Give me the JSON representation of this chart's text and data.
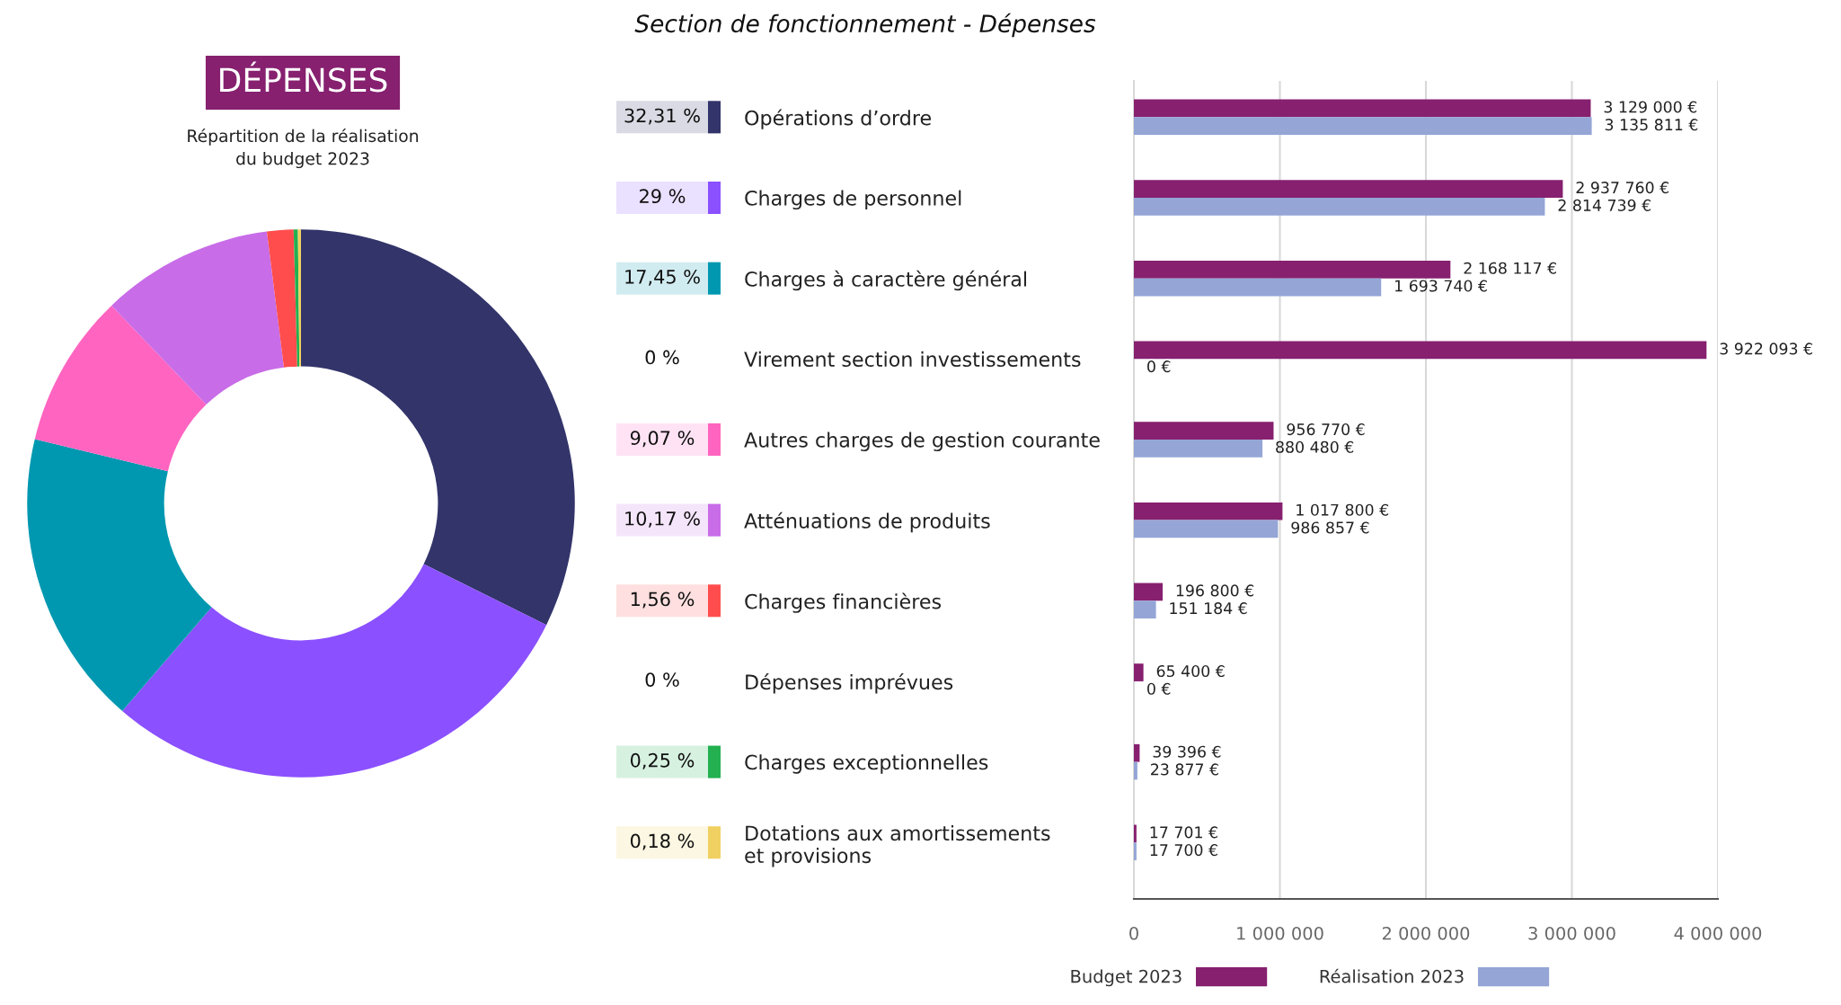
{
  "chart_data": [
    {
      "type": "donut",
      "title": "DÉPENSES",
      "subtitle": "Répartition de la réalisation\ndu budget 2023",
      "categories": [
        null,
        null,
        null,
        null,
        null,
        null,
        null,
        null,
        null,
        null
      ],
      "values": [
        32.31,
        29,
        17.45,
        0,
        9.07,
        10.17,
        1.56,
        0,
        0.25,
        0.18
      ],
      "annotations": [
        "32,31 %",
        "29 %",
        "17,45 %",
        "0 %",
        "9,07 %",
        "10,17 %",
        "1,56 %",
        "0 %",
        "0,25 %",
        "0,18 %"
      ],
      "colors": [
        "#32346a",
        "#8b50ff",
        "#0098b0",
        null,
        "#ff64c0",
        "#c86ce8",
        "#ff4d4d",
        null,
        "#22b050",
        "#f0d060"
      ]
    },
    {
      "type": "bar",
      "orientation": "horizontal",
      "title": "Section de fonctionnement - Dépenses",
      "categories": [
        "Opérations d’ordre",
        "Charges de personnel",
        "Charges à caractère général",
        "Virement section investissements",
        "Autres charges de gestion courante",
        "Atténuations de produits",
        "Charges financières",
        "Dépenses imprévues",
        "Charges exceptionnelles",
        "Dotations aux amortissements\net provisions"
      ],
      "series": [
        {
          "name": "Budget 2023",
          "color": "#86206f",
          "values": [
            3129000,
            2937760,
            2168117,
            3922093,
            956770,
            1017800,
            196800,
            65400,
            39396,
            17701
          ],
          "value_labels": [
            "3 129 000 €",
            "2 937 760 €",
            "2 168 117 €",
            "3 922 093 €",
            "956 770 €",
            "1 017 800 €",
            "196 800 €",
            "65 400 €",
            "39 396 €",
            "17 701 €"
          ]
        },
        {
          "name": "Réalisation 2023",
          "color": "#94a5d6",
          "values": [
            3135811,
            2814739,
            1693740,
            0,
            880480,
            986857,
            151184,
            0,
            23877,
            17700
          ],
          "value_labels": [
            "3 135 811 €",
            "2 814 739 €",
            "1 693 740 €",
            "0 €",
            "880 480 €",
            "986 857 €",
            "151 184 €",
            "0 €",
            "23 877 €",
            "17 700 €"
          ]
        }
      ],
      "xlim": [
        0,
        4000000
      ],
      "xticks": [
        0,
        {
          "value": 1000000,
          "label": "1 000 000"
        },
        {
          "value": 2000000,
          "label": "2 000 000"
        },
        {
          "value": 3000000,
          "label": "3 000 000"
        },
        {
          "value": 4000000,
          "label": "4 000 000"
        }
      ],
      "grid": "x",
      "legend": "bottom"
    }
  ]
}
